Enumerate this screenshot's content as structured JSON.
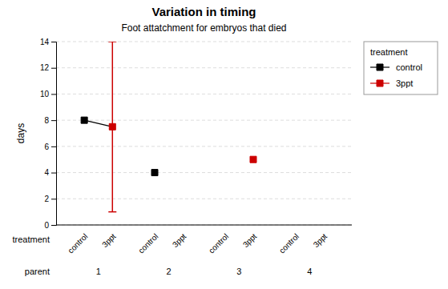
{
  "chart_data": {
    "type": "scatter",
    "title": "Variation in timing",
    "subtitle": "Foot attatchment for embryos that died",
    "y_label": "days",
    "x_label": "treatment",
    "x_group_label": "parent",
    "legend_title": "treatment",
    "legend": "right",
    "grid": true,
    "line_style": "solid",
    "categories": [
      "1",
      "2",
      "3",
      "4"
    ],
    "series": [
      {
        "name": "control",
        "color": "#000000",
        "marker": "square",
        "values": [
          8.0,
          4.0,
          null,
          null
        ],
        "ci_low": [
          null,
          null,
          null,
          null
        ],
        "ci_high": [
          null,
          null,
          null,
          null
        ]
      },
      {
        "name": "3ppt",
        "color": "#cc0000",
        "marker": "square",
        "values": [
          7.5,
          null,
          5.0,
          null
        ],
        "ci_low": [
          1.0,
          null,
          null,
          null
        ],
        "ci_high": [
          14.0,
          null,
          null,
          null
        ]
      }
    ],
    "ylim": [
      0,
      14
    ],
    "yticks": [
      0,
      2,
      4,
      6,
      8,
      10,
      12,
      14
    ]
  }
}
